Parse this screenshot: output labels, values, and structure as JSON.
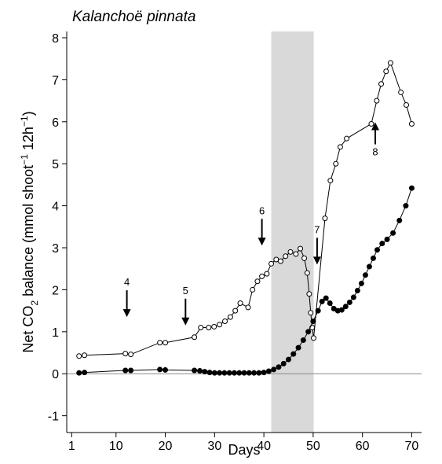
{
  "chart_data": {
    "type": "line",
    "title": "Kalanchoë pinnata",
    "x_label": "Days",
    "y_label": [
      "Net CO",
      "2",
      " balance (mmol shoot",
      "−1",
      " 12h",
      "−1",
      ")"
    ],
    "xlim": [
      0,
      72
    ],
    "xticks": [
      1,
      10,
      20,
      30,
      40,
      50,
      60,
      70
    ],
    "ylim": [
      -1.4,
      8.15
    ],
    "yticks": [
      -1,
      0,
      1,
      2,
      3,
      4,
      5,
      6,
      7,
      8
    ],
    "shaded_region": [
      41.5,
      50.1
    ],
    "shade_color": "#d9d9d9",
    "annotations": [
      "4",
      "5",
      "6",
      "7",
      "8"
    ],
    "series": [
      {
        "marker": "open",
        "color": "#000000",
        "x": [
          2.5,
          3.6,
          11.9,
          13,
          18.9,
          20,
          25.9,
          27.2,
          28.8,
          29.9,
          31,
          32.1,
          33.2,
          34.2,
          35.2,
          36.8,
          37.7,
          38.7,
          39.6,
          40.6,
          41.5,
          42.5,
          43.4,
          44.4,
          45.4,
          46.5,
          47.4,
          48.2,
          48.8,
          49.2,
          49.5,
          49.8,
          50.1,
          52.4,
          53.5,
          54.6,
          55.5,
          56.8,
          61.8,
          62.9,
          63.8,
          64.8,
          65.7,
          67.8,
          68.9,
          70
        ],
        "values": [
          0.42,
          0.44,
          0.48,
          0.46,
          0.74,
          0.74,
          0.87,
          1.1,
          1.1,
          1.12,
          1.17,
          1.25,
          1.35,
          1.5,
          1.68,
          1.58,
          2.0,
          2.2,
          2.32,
          2.38,
          2.62,
          2.72,
          2.68,
          2.8,
          2.9,
          2.85,
          2.98,
          2.75,
          2.4,
          1.9,
          1.45,
          1.1,
          0.85,
          3.7,
          4.6,
          5.0,
          5.4,
          5.6,
          5.95,
          6.5,
          6.9,
          7.2,
          7.4,
          6.7,
          6.4,
          5.95
        ]
      },
      {
        "marker": "filled",
        "color": "#000000",
        "x": [
          2.5,
          3.6,
          11.9,
          13,
          18.9,
          20,
          25.9,
          27,
          28,
          29,
          30,
          31,
          32,
          33,
          34,
          35,
          36,
          37,
          38,
          39,
          40,
          41,
          42,
          43,
          44,
          45,
          46,
          47,
          48,
          49,
          50,
          51,
          51.8,
          52.6,
          53.4,
          54.2,
          55,
          55.8,
          56.6,
          57.4,
          58.2,
          59,
          59.8,
          60.6,
          61.4,
          62.2,
          63,
          64,
          65,
          66.2,
          67.5,
          68.8,
          70
        ],
        "values": [
          0.02,
          0.03,
          0.08,
          0.08,
          0.1,
          0.09,
          0.08,
          0.07,
          0.05,
          0.03,
          0.02,
          0.02,
          0.02,
          0.02,
          0.02,
          0.02,
          0.02,
          0.02,
          0.02,
          0.02,
          0.03,
          0.06,
          0.1,
          0.16,
          0.24,
          0.34,
          0.47,
          0.62,
          0.8,
          1.0,
          1.25,
          1.5,
          1.72,
          1.8,
          1.68,
          1.55,
          1.5,
          1.52,
          1.6,
          1.7,
          1.82,
          1.98,
          2.15,
          2.35,
          2.55,
          2.75,
          2.95,
          3.1,
          3.2,
          3.35,
          3.65,
          4.0,
          4.42
        ]
      }
    ]
  }
}
